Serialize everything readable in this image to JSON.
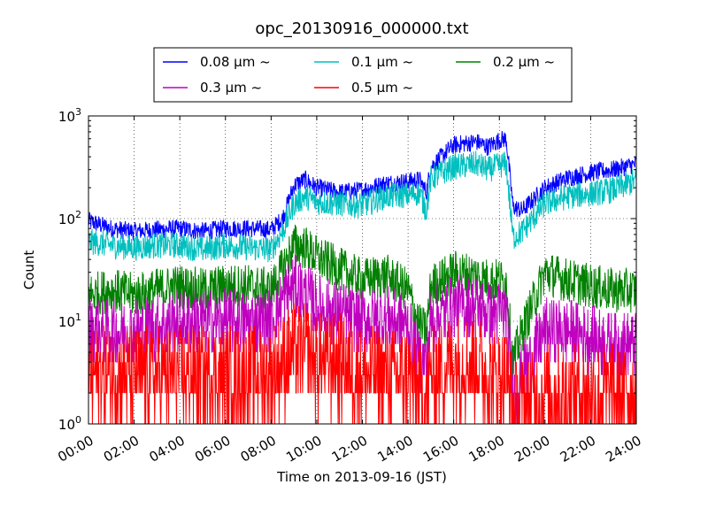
{
  "chart_data": {
    "type": "line",
    "title": "opc_20130916_000000.txt",
    "xlabel": "Time on 2013-09-16 (JST)",
    "ylabel": "Count",
    "y_scale": "log",
    "ylim": [
      1,
      1000
    ],
    "xlim_hours": [
      0,
      24
    ],
    "grid": true,
    "legend_position": "top (above axes)",
    "x_tick_labels": [
      "00:00",
      "02:00",
      "04:00",
      "06:00",
      "08:00",
      "10:00",
      "12:00",
      "14:00",
      "16:00",
      "18:00",
      "20:00",
      "22:00",
      "24:00"
    ],
    "y_tick_labels": [
      {
        "base": "10",
        "exp": "0"
      },
      {
        "base": "10",
        "exp": "1"
      },
      {
        "base": "10",
        "exp": "2"
      },
      {
        "base": "10",
        "exp": "3"
      }
    ],
    "hours": [
      0,
      1,
      2,
      3,
      4,
      5,
      6,
      7,
      8,
      8.5,
      9,
      9.5,
      10,
      11,
      12,
      13,
      14,
      14.5,
      14.8,
      15,
      16,
      17,
      17.5,
      18,
      18.3,
      18.6,
      19,
      20,
      21,
      22,
      23,
      24
    ],
    "series": [
      {
        "name": "0.08 μm ~",
        "color": "#0000ff",
        "noise": 0.09,
        "values": [
          95,
          80,
          75,
          78,
          80,
          75,
          80,
          80,
          78,
          100,
          210,
          240,
          200,
          180,
          190,
          220,
          230,
          240,
          180,
          320,
          520,
          560,
          500,
          580,
          600,
          130,
          120,
          200,
          250,
          280,
          300,
          340
        ]
      },
      {
        "name": "0.1 μm ~",
        "color": "#00bfbf",
        "noise": 0.13,
        "values": [
          60,
          55,
          52,
          55,
          55,
          50,
          55,
          52,
          50,
          75,
          140,
          165,
          145,
          140,
          135,
          165,
          170,
          180,
          120,
          245,
          320,
          340,
          300,
          330,
          340,
          65,
          75,
          140,
          165,
          175,
          190,
          235
        ]
      },
      {
        "name": "0.2 μm ~",
        "color": "#008000",
        "noise": 0.22,
        "values": [
          18,
          20,
          18,
          20,
          22,
          20,
          22,
          22,
          20,
          32,
          55,
          52,
          42,
          32,
          25,
          28,
          20,
          9,
          8,
          22,
          30,
          28,
          25,
          25,
          24,
          4,
          8,
          30,
          25,
          22,
          20,
          20
        ]
      },
      {
        "name": "0.3 μm ~",
        "color": "#bf00bf",
        "noise": 0.32,
        "values": [
          8,
          8,
          8,
          9,
          10,
          10,
          10,
          10,
          10,
          16,
          22,
          18,
          14,
          12,
          10,
          11,
          9,
          4,
          4,
          10,
          14,
          14,
          12,
          12,
          12,
          2,
          3,
          8,
          8,
          7,
          6,
          6
        ]
      },
      {
        "name": "0.5 μm ~",
        "color": "#ff0000",
        "noise": 0.48,
        "values": [
          3,
          3,
          3,
          3,
          3,
          3,
          3,
          3,
          3,
          4,
          5,
          5,
          4,
          4,
          3,
          3,
          3,
          2,
          2,
          3,
          4,
          4,
          3,
          3,
          3,
          1.4,
          1.6,
          2,
          2,
          2,
          2,
          2
        ]
      }
    ]
  }
}
